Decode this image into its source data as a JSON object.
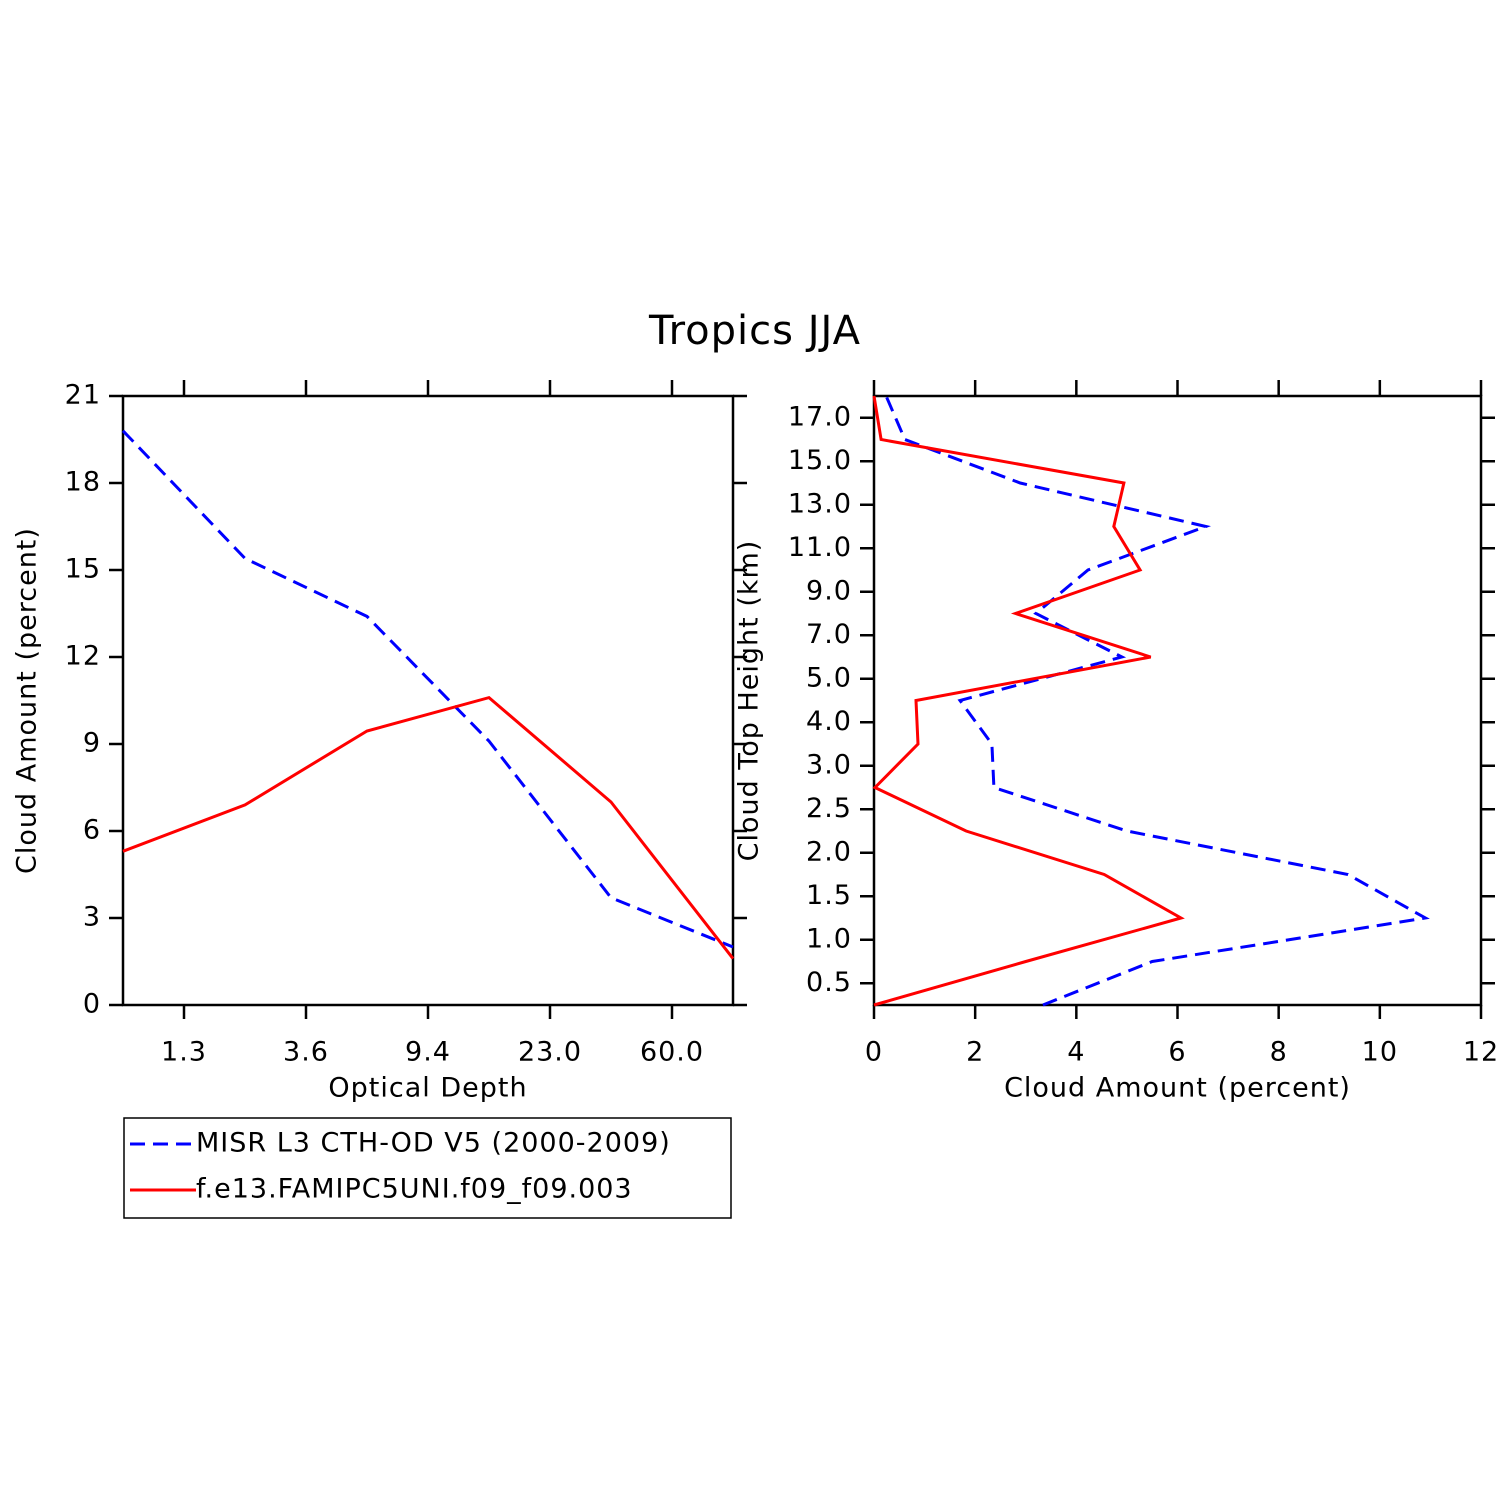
{
  "title": "Tropics JJA",
  "chart_data": [
    {
      "type": "line",
      "xlabel": "Optical Depth",
      "ylabel": "Cloud Amount (percent)",
      "x": [
        0,
        1,
        2,
        3,
        4,
        5
      ],
      "xlim": [
        0,
        5
      ],
      "xticks": [
        {
          "value": 0.5,
          "label": "1.3"
        },
        {
          "value": 1.5,
          "label": "3.6"
        },
        {
          "value": 2.5,
          "label": "9.4"
        },
        {
          "value": 3.5,
          "label": "23.0"
        },
        {
          "value": 4.5,
          "label": "60.0"
        }
      ],
      "ylim": [
        0,
        21
      ],
      "yticks": [
        0,
        3,
        6,
        9,
        12,
        15,
        18,
        21
      ],
      "legend": "below",
      "series": [
        {
          "name": "MISR L3 CTH-OD V5 (2000-2009)",
          "color": "#0000ff",
          "dash": true,
          "values": [
            19.8,
            15.4,
            13.4,
            9.1,
            3.7,
            2.0
          ]
        },
        {
          "name": "f.e13.FAMIPC5UNI.f09_f09.003",
          "color": "#ff0000",
          "dash": false,
          "values": [
            5.3,
            6.9,
            9.45,
            10.6,
            7.0,
            1.6
          ]
        }
      ]
    },
    {
      "type": "line",
      "orientation": "horizontal",
      "xlabel": "Cloud Amount (percent)",
      "ylabel": "Cloud Top Height (km)",
      "y": [
        -0.5,
        0.5,
        1.5,
        2.5,
        3.5,
        4.5,
        5.5,
        6.5,
        7.5,
        8.5,
        9.5,
        10.5,
        11.5,
        12.5,
        13.5
      ],
      "ylim": [
        -0.5,
        13.5
      ],
      "yticks": [
        {
          "value": 0,
          "label": "0.5"
        },
        {
          "value": 1,
          "label": "1.0"
        },
        {
          "value": 2,
          "label": "1.5"
        },
        {
          "value": 3,
          "label": "2.0"
        },
        {
          "value": 4,
          "label": "2.5"
        },
        {
          "value": 5,
          "label": "3.0"
        },
        {
          "value": 6,
          "label": "4.0"
        },
        {
          "value": 7,
          "label": "5.0"
        },
        {
          "value": 8,
          "label": "7.0"
        },
        {
          "value": 9,
          "label": "9.0"
        },
        {
          "value": 10,
          "label": "11.0"
        },
        {
          "value": 11,
          "label": "13.0"
        },
        {
          "value": 12,
          "label": "15.0"
        },
        {
          "value": 13,
          "label": "17.0"
        }
      ],
      "xlim": [
        0,
        12
      ],
      "xticks": [
        0,
        2,
        4,
        6,
        8,
        10,
        12
      ],
      "series": [
        {
          "name": "MISR L3 CTH-OD V5 (2000-2009)",
          "color": "#0000ff",
          "dash": true,
          "values": [
            3.34,
            5.5,
            10.9,
            9.37,
            5.0,
            2.37,
            2.33,
            1.7,
            4.9,
            3.2,
            4.23,
            6.56,
            2.89,
            0.61,
            0.24
          ]
        },
        {
          "name": "f.e13.FAMIPC5UNI.f09_f09.003",
          "color": "#ff0000",
          "dash": false,
          "values": [
            0,
            3.0,
            6.07,
            4.55,
            1.82,
            0.02,
            0.87,
            0.83,
            5.47,
            2.8,
            5.26,
            4.74,
            4.94,
            0.14,
            0
          ]
        }
      ]
    }
  ]
}
